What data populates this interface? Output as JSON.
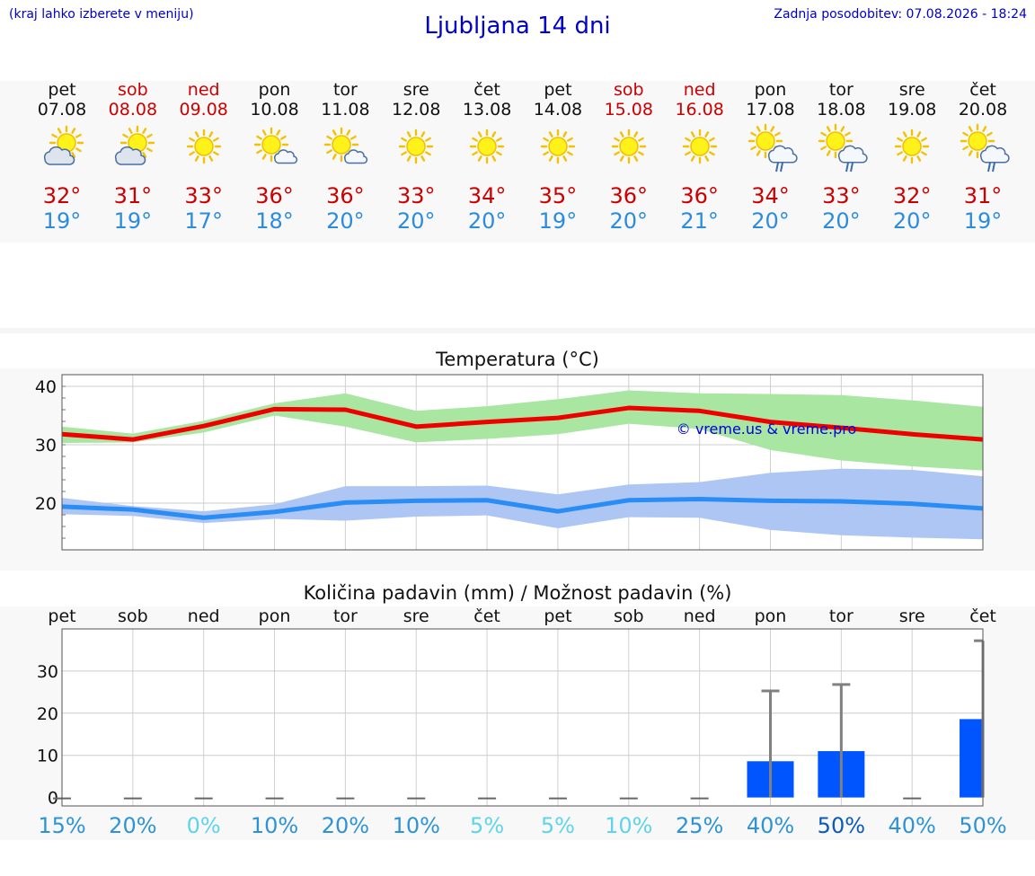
{
  "header": {
    "hint": "(kraj lahko izberete v meniju)",
    "title": "Ljubljana 14 dni",
    "updated": "Zadnja posodobitev: 07.08.2026 - 18:24"
  },
  "forecast": [
    {
      "day": "pet",
      "date": "07.08",
      "weekend": false,
      "icon": "sun-cloud-icon",
      "tmax": "32°",
      "tmin": "19°"
    },
    {
      "day": "sob",
      "date": "08.08",
      "weekend": true,
      "icon": "sun-cloud-icon",
      "tmax": "31°",
      "tmin": "19°"
    },
    {
      "day": "ned",
      "date": "09.08",
      "weekend": true,
      "icon": "sun-icon",
      "tmax": "33°",
      "tmin": "17°"
    },
    {
      "day": "pon",
      "date": "10.08",
      "weekend": false,
      "icon": "sun-small-cloud-icon",
      "tmax": "36°",
      "tmin": "18°"
    },
    {
      "day": "tor",
      "date": "11.08",
      "weekend": false,
      "icon": "sun-small-cloud-icon",
      "tmax": "36°",
      "tmin": "20°"
    },
    {
      "day": "sre",
      "date": "12.08",
      "weekend": false,
      "icon": "sun-icon",
      "tmax": "33°",
      "tmin": "20°"
    },
    {
      "day": "čet",
      "date": "13.08",
      "weekend": false,
      "icon": "sun-icon",
      "tmax": "34°",
      "tmin": "20°"
    },
    {
      "day": "pet",
      "date": "14.08",
      "weekend": false,
      "icon": "sun-icon",
      "tmax": "35°",
      "tmin": "19°"
    },
    {
      "day": "sob",
      "date": "15.08",
      "weekend": true,
      "icon": "sun-icon",
      "tmax": "36°",
      "tmin": "20°"
    },
    {
      "day": "ned",
      "date": "16.08",
      "weekend": true,
      "icon": "sun-icon",
      "tmax": "36°",
      "tmin": "21°"
    },
    {
      "day": "pon",
      "date": "17.08",
      "weekend": false,
      "icon": "sun-rain-cloud-icon",
      "tmax": "34°",
      "tmin": "20°"
    },
    {
      "day": "tor",
      "date": "18.08",
      "weekend": false,
      "icon": "sun-rain-cloud-icon",
      "tmax": "33°",
      "tmin": "20°"
    },
    {
      "day": "sre",
      "date": "19.08",
      "weekend": false,
      "icon": "sun-icon",
      "tmax": "32°",
      "tmin": "20°"
    },
    {
      "day": "čet",
      "date": "20.08",
      "weekend": false,
      "icon": "sun-rain-cloud-icon",
      "tmax": "31°",
      "tmin": "19°"
    }
  ],
  "colors": {
    "max_line": "#ee0000",
    "max_band": "#a8e6a1",
    "min_line": "#2a8cf5",
    "min_band": "#aec6f3",
    "bar": "#0055ff",
    "error": "#808080",
    "watermark": "#0000dd",
    "weekend": "#cc0000",
    "tmin": "#2a8be0"
  },
  "chart_data": [
    {
      "type": "line",
      "title": "Temperatura (°C)",
      "watermark": "© vreme.us & vreme.pro",
      "x": [
        1,
        2,
        3,
        4,
        5,
        6,
        7,
        8,
        9,
        10,
        11,
        12,
        13,
        14
      ],
      "ylim": [
        12,
        42
      ],
      "yticks": [
        20,
        30,
        40
      ],
      "grid": true,
      "series": [
        {
          "values": [
            31.8,
            30.9,
            33.2,
            36.1,
            36.0,
            33.1,
            33.9,
            34.6,
            36.3,
            35.8,
            33.9,
            32.9,
            31.8,
            30.9
          ],
          "band_low": [
            30.3,
            30.4,
            32.1,
            35.0,
            33.1,
            30.4,
            31.0,
            31.8,
            33.6,
            32.7,
            29.1,
            27.3,
            26.3,
            25.6
          ],
          "band_high": [
            33.1,
            31.9,
            34.1,
            37.1,
            38.8,
            35.8,
            36.6,
            37.8,
            39.3,
            38.8,
            38.7,
            38.5,
            37.6,
            36.5
          ]
        },
        {
          "values": [
            19.4,
            18.9,
            17.5,
            18.5,
            20.1,
            20.4,
            20.5,
            18.6,
            20.5,
            20.7,
            20.4,
            20.3,
            19.9,
            19.1
          ],
          "band_low": [
            18.1,
            17.8,
            16.6,
            17.3,
            17.0,
            17.7,
            17.9,
            15.7,
            17.6,
            17.5,
            15.4,
            14.5,
            14.1,
            13.8
          ],
          "band_high": [
            20.9,
            19.5,
            18.6,
            19.8,
            22.9,
            22.9,
            23.0,
            21.5,
            23.2,
            23.6,
            25.2,
            25.9,
            25.7,
            24.6
          ]
        }
      ]
    },
    {
      "type": "bar",
      "title": "Količina padavin (mm) / Možnost padavin (%)",
      "categories": [
        "pet",
        "sob",
        "ned",
        "pon",
        "tor",
        "sre",
        "čet",
        "pet",
        "sob",
        "ned",
        "pon",
        "tor",
        "sre",
        "čet"
      ],
      "values": [
        0,
        0,
        0,
        0,
        0,
        0,
        0,
        0,
        0,
        0,
        8.6,
        11,
        0,
        18.6
      ],
      "error_high": [
        0,
        0,
        0,
        0,
        0,
        0,
        0,
        0,
        0,
        0,
        25.3,
        26.8,
        0,
        37.2
      ],
      "ylim": [
        -2,
        40
      ],
      "yticks": [
        0,
        10,
        20,
        30
      ],
      "probabilities": [
        "15%",
        "20%",
        "0%",
        "10%",
        "20%",
        "10%",
        "5%",
        "5%",
        "10%",
        "25%",
        "40%",
        "50%",
        "40%",
        "50%"
      ],
      "probability_colors": [
        "#2e93d6",
        "#2e93d6",
        "#5ed4ea",
        "#2e93d6",
        "#2e93d6",
        "#2e93d6",
        "#5ed4ea",
        "#5ed4ea",
        "#5ed4ea",
        "#2e93d6",
        "#2e93d6",
        "#0b5ab8",
        "#2e93d6",
        "#2e93d6"
      ]
    }
  ]
}
